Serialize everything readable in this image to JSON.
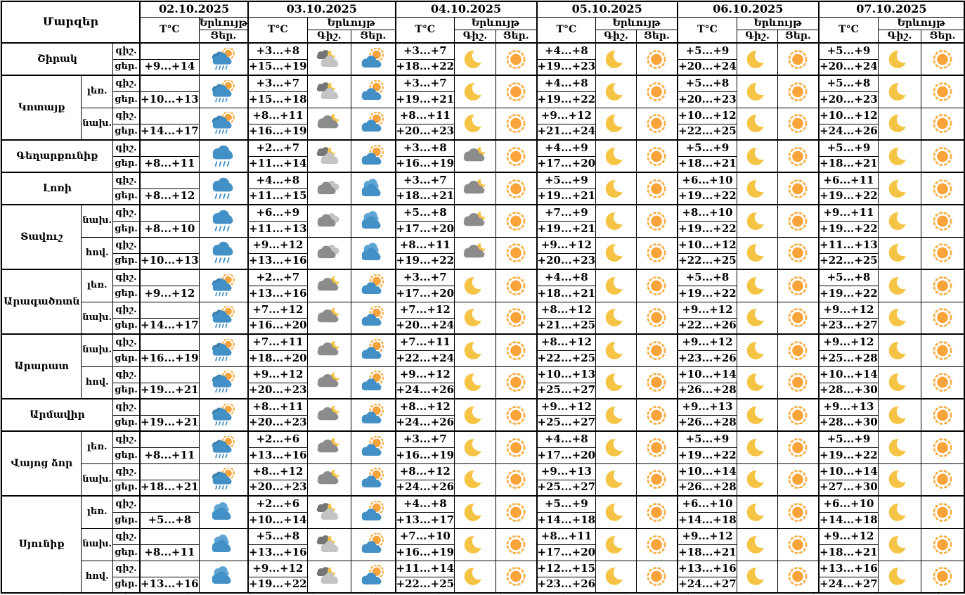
{
  "table": {
    "corner_label": "Մարզեր",
    "temp_header": "T°C",
    "phenomenon_header": "Երևույթ",
    "night_col_header": "Գիշ.",
    "day_col_header": "Ցեր.",
    "period_labels": {
      "night": "գիշ.",
      "day": "ցեր."
    },
    "dates": [
      "02.10.2025",
      "03.10.2025",
      "04.10.2025",
      "05.10.2025",
      "06.10.2025",
      "07.10.2025"
    ],
    "first_date_day_icon_only": true,
    "day_entry_format": [
      "night_temp",
      "day_temp",
      "night_icon",
      "day_icon"
    ]
  },
  "icon_types": [
    "sun",
    "moon",
    "sun-cloud",
    "cloud-moon",
    "clouds-gray-moon",
    "clouds-gray",
    "clouds-blue",
    "rain",
    "rain-sun"
  ],
  "colors": {
    "border": "#000000",
    "background": "#FFFFFF",
    "grid_line": "#D9D9D9",
    "sun_core": "#F9A43B",
    "sun_ray": "#F7B24C",
    "moon": "#F6C445",
    "cloud_blue": "#4390C6",
    "cloud_blue_dark": "#3A7CA8",
    "cloud_blue_light": "#5FA4D4",
    "cloud_gray_dark": "#757575",
    "cloud_gray": "#8C8C8C",
    "cloud_gray_light": "#C4C4C4",
    "rain": "#4390C6"
  },
  "regions": [
    {
      "name": "Շիրակ",
      "zones": [
        {
          "label": "",
          "days": [
            [
              "",
              "+9...+14",
              "",
              "rain-sun"
            ],
            [
              "+3...+8",
              "+15...+19",
              "clouds-gray-moon",
              "sun-cloud"
            ],
            [
              "+3...+7",
              "+18...+22",
              "moon",
              "sun"
            ],
            [
              "+4...+8",
              "+19...+23",
              "moon",
              "sun"
            ],
            [
              "+5...+9",
              "+20...+24",
              "moon",
              "sun"
            ],
            [
              "+5...+9",
              "+20...+24",
              "moon",
              "sun"
            ]
          ]
        }
      ]
    },
    {
      "name": "Կոտայք",
      "zones": [
        {
          "label": "լեռ.",
          "days": [
            [
              "",
              "+10...+13",
              "",
              "rain-sun"
            ],
            [
              "+3...+7",
              "+15...+18",
              "clouds-gray-moon",
              "sun-cloud"
            ],
            [
              "+3...+7",
              "+19...+21",
              "moon",
              "sun"
            ],
            [
              "+4...+8",
              "+19...+22",
              "moon",
              "sun"
            ],
            [
              "+5...+8",
              "+20...+23",
              "moon",
              "sun"
            ],
            [
              "+5...+8",
              "+20...+23",
              "moon",
              "sun"
            ]
          ]
        },
        {
          "label": "նախ.",
          "days": [
            [
              "",
              "+14...+17",
              "",
              "rain-sun"
            ],
            [
              "+8...+11",
              "+16...+19",
              "cloud-moon",
              "sun-cloud"
            ],
            [
              "+8...+11",
              "+20...+23",
              "moon",
              "sun"
            ],
            [
              "+9...+12",
              "+21...+24",
              "moon",
              "sun"
            ],
            [
              "+10...+12",
              "+22...+25",
              "moon",
              "sun"
            ],
            [
              "+10...+12",
              "+24...+26",
              "moon",
              "sun"
            ]
          ]
        }
      ]
    },
    {
      "name": "Գեղարքունիք",
      "zones": [
        {
          "label": "",
          "days": [
            [
              "",
              "+8...+11",
              "",
              "rain"
            ],
            [
              "+2...+7",
              "+11...+14",
              "clouds-gray-moon",
              "sun-cloud"
            ],
            [
              "+3...+8",
              "+16...+19",
              "cloud-moon",
              "sun"
            ],
            [
              "+4...+9",
              "+17...+20",
              "moon",
              "sun"
            ],
            [
              "+5...+9",
              "+18...+21",
              "moon",
              "sun"
            ],
            [
              "+5...+9",
              "+18...+21",
              "moon",
              "sun"
            ]
          ]
        }
      ]
    },
    {
      "name": "Լոռի",
      "zones": [
        {
          "label": "",
          "days": [
            [
              "",
              "+8...+12",
              "",
              "rain"
            ],
            [
              "+4...+8",
              "+11...+15",
              "clouds-gray",
              "clouds-blue"
            ],
            [
              "+3...+7",
              "+18...+21",
              "cloud-moon",
              "sun"
            ],
            [
              "+5...+9",
              "+19...+21",
              "moon",
              "sun"
            ],
            [
              "+6...+10",
              "+19...+22",
              "moon",
              "sun"
            ],
            [
              "+6...+11",
              "+19...+22",
              "moon",
              "sun"
            ]
          ]
        }
      ]
    },
    {
      "name": "Տավուշ",
      "zones": [
        {
          "label": "նախ.",
          "days": [
            [
              "",
              "+8...+10",
              "",
              "rain"
            ],
            [
              "+6...+9",
              "+11...+13",
              "clouds-gray",
              "clouds-blue"
            ],
            [
              "+5...+8",
              "+17...+20",
              "cloud-moon",
              "sun"
            ],
            [
              "+7...+9",
              "+19...+21",
              "moon",
              "sun"
            ],
            [
              "+8...+10",
              "+19...+22",
              "moon",
              "sun"
            ],
            [
              "+9...+11",
              "+19...+22",
              "moon",
              "sun"
            ]
          ]
        },
        {
          "label": "հով.",
          "days": [
            [
              "",
              "+10...+13",
              "",
              "rain"
            ],
            [
              "+9...+12",
              "+13...+16",
              "clouds-gray",
              "clouds-blue"
            ],
            [
              "+8...+11",
              "+19...+22",
              "cloud-moon",
              "sun"
            ],
            [
              "+9...+12",
              "+20...+23",
              "moon",
              "sun"
            ],
            [
              "+10...+12",
              "+22...+25",
              "moon",
              "sun"
            ],
            [
              "+11...+13",
              "+22...+25",
              "moon",
              "sun"
            ]
          ]
        }
      ]
    },
    {
      "name": "Արագածոտն",
      "zones": [
        {
          "label": "լեռ.",
          "days": [
            [
              "",
              "+9...+12",
              "",
              "rain-sun"
            ],
            [
              "+2...+7",
              "+13...+16",
              "cloud-moon",
              "sun-cloud"
            ],
            [
              "+3...+7",
              "+17...+20",
              "moon",
              "sun"
            ],
            [
              "+4...+8",
              "+18...+21",
              "moon",
              "sun"
            ],
            [
              "+5...+8",
              "+19...+22",
              "moon",
              "sun"
            ],
            [
              "+5...+8",
              "+19...+22",
              "moon",
              "sun"
            ]
          ]
        },
        {
          "label": "նախ.",
          "days": [
            [
              "",
              "+14...+17",
              "",
              "rain-sun"
            ],
            [
              "+7...+12",
              "+16...+20",
              "cloud-moon",
              "sun-cloud"
            ],
            [
              "+7...+12",
              "+20...+24",
              "moon",
              "sun"
            ],
            [
              "+8...+12",
              "+21...+25",
              "moon",
              "sun"
            ],
            [
              "+9...+12",
              "+22...+26",
              "moon",
              "sun"
            ],
            [
              "+9...+12",
              "+23...+27",
              "moon",
              "sun"
            ]
          ]
        }
      ]
    },
    {
      "name": "Արարատ",
      "zones": [
        {
          "label": "նախ.",
          "days": [
            [
              "",
              "+16...+19",
              "",
              "rain-sun"
            ],
            [
              "+7...+11",
              "+18...+20",
              "cloud-moon",
              "sun-cloud"
            ],
            [
              "+7...+11",
              "+22...+24",
              "moon",
              "sun"
            ],
            [
              "+8...+12",
              "+22...+25",
              "moon",
              "sun"
            ],
            [
              "+9...+12",
              "+23...+26",
              "moon",
              "sun"
            ],
            [
              "+9...+12",
              "+25...+28",
              "moon",
              "sun"
            ]
          ]
        },
        {
          "label": "հով.",
          "days": [
            [
              "",
              "+19...+21",
              "",
              "rain-sun"
            ],
            [
              "+9...+12",
              "+20...+23",
              "cloud-moon",
              "sun-cloud"
            ],
            [
              "+9...+12",
              "+24...+26",
              "moon",
              "sun"
            ],
            [
              "+10...+13",
              "+25...+27",
              "moon",
              "sun"
            ],
            [
              "+10...+14",
              "+26...+28",
              "moon",
              "sun"
            ],
            [
              "+10...+14",
              "+28...+30",
              "moon",
              "sun"
            ]
          ]
        }
      ]
    },
    {
      "name": "Արմավիր",
      "zones": [
        {
          "label": "",
          "days": [
            [
              "",
              "+19...+21",
              "",
              "rain-sun"
            ],
            [
              "+8...+11",
              "+20...+23",
              "cloud-moon",
              "sun-cloud"
            ],
            [
              "+8...+12",
              "+24...+26",
              "moon",
              "sun"
            ],
            [
              "+9...+12",
              "+25...+27",
              "moon",
              "sun"
            ],
            [
              "+9...+13",
              "+26...+28",
              "moon",
              "sun"
            ],
            [
              "+9...+13",
              "+28...+30",
              "moon",
              "sun"
            ]
          ]
        }
      ]
    },
    {
      "name": "Վայոց ձոր",
      "zones": [
        {
          "label": "լեռ.",
          "days": [
            [
              "",
              "+8...+11",
              "",
              "rain-sun"
            ],
            [
              "+2...+6",
              "+13...+16",
              "cloud-moon",
              "sun-cloud"
            ],
            [
              "+3...+7",
              "+16...+19",
              "moon",
              "sun"
            ],
            [
              "+4...+8",
              "+17...+20",
              "moon",
              "sun"
            ],
            [
              "+5...+9",
              "+19...+22",
              "moon",
              "sun"
            ],
            [
              "+5...+9",
              "+19...+22",
              "moon",
              "sun"
            ]
          ]
        },
        {
          "label": "նախ.",
          "days": [
            [
              "",
              "+18...+21",
              "",
              "rain-sun"
            ],
            [
              "+8...+12",
              "+20...+23",
              "cloud-moon",
              "sun-cloud"
            ],
            [
              "+8...+12",
              "+24...+26",
              "moon",
              "sun"
            ],
            [
              "+9...+13",
              "+25...+27",
              "moon",
              "sun"
            ],
            [
              "+10...+14",
              "+26...+28",
              "moon",
              "sun"
            ],
            [
              "+10...+14",
              "+27...+30",
              "moon",
              "sun"
            ]
          ]
        }
      ]
    },
    {
      "name": "Սյունիք",
      "zones": [
        {
          "label": "լեռ.",
          "days": [
            [
              "",
              "+5...+8",
              "",
              "clouds-blue"
            ],
            [
              "+2...+6",
              "+10...+14",
              "clouds-gray-moon",
              "sun-cloud"
            ],
            [
              "+4...+8",
              "+13...+17",
              "moon",
              "sun"
            ],
            [
              "+5...+9",
              "+14...+18",
              "moon",
              "sun"
            ],
            [
              "+6...+10",
              "+14...+18",
              "moon",
              "sun"
            ],
            [
              "+6...+10",
              "+14...+18",
              "moon",
              "sun"
            ]
          ]
        },
        {
          "label": "նախ.",
          "days": [
            [
              "",
              "+8...+11",
              "",
              "clouds-blue"
            ],
            [
              "+5...+8",
              "+13...+16",
              "clouds-gray-moon",
              "sun-cloud"
            ],
            [
              "+7...+10",
              "+16...+19",
              "moon",
              "sun"
            ],
            [
              "+8...+11",
              "+17...+20",
              "moon",
              "sun"
            ],
            [
              "+9...+12",
              "+18...+21",
              "moon",
              "sun"
            ],
            [
              "+9...+12",
              "+18...+21",
              "moon",
              "sun"
            ]
          ]
        },
        {
          "label": "հով.",
          "days": [
            [
              "",
              "+13...+16",
              "",
              "clouds-blue"
            ],
            [
              "+9...+12",
              "+19...+22",
              "clouds-gray-moon",
              "sun-cloud"
            ],
            [
              "+11...+14",
              "+22...+25",
              "moon",
              "sun"
            ],
            [
              "+12...+15",
              "+23...+26",
              "moon",
              "sun"
            ],
            [
              "+13...+16",
              "+24...+27",
              "moon",
              "sun"
            ],
            [
              "+13...+16",
              "+24...+27",
              "moon",
              "sun"
            ]
          ]
        }
      ]
    }
  ]
}
